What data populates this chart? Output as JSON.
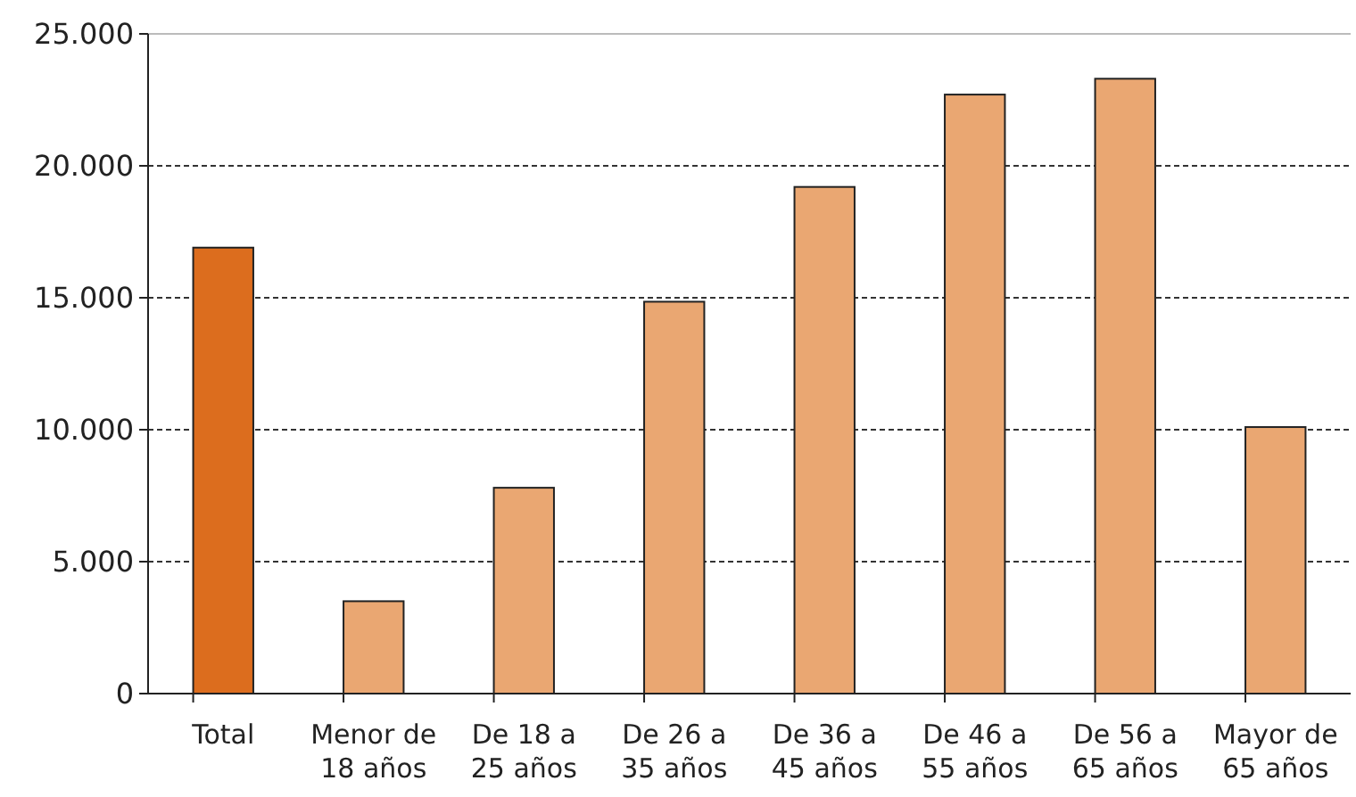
{
  "chart_data": {
    "type": "bar",
    "categories": [
      "Total",
      "Menor de 18 años",
      "De 18 a 25 años",
      "De 26 a 35 años",
      "De 36 a 45 años",
      "De 46 a 55 años",
      "De 56 a 65 años",
      "Mayor de 65 años"
    ],
    "values": [
      16900,
      3500,
      7800,
      14850,
      19200,
      22700,
      23300,
      10100
    ],
    "colors": [
      "#dc6d1e",
      "#eaa772",
      "#eaa772",
      "#eaa772",
      "#eaa772",
      "#eaa772",
      "#eaa772",
      "#eaa772"
    ],
    "ylim": [
      0,
      25000
    ],
    "yticks": [
      0,
      {
        "value": 5000,
        "label": "5.000"
      },
      {
        "value": 10000,
        "label": "10.000"
      },
      {
        "value": 15000,
        "label": "15.000"
      },
      {
        "value": 20000,
        "label": "20.000"
      },
      {
        "value": 25000,
        "label": "25.000"
      }
    ],
    "grid": "y"
  }
}
